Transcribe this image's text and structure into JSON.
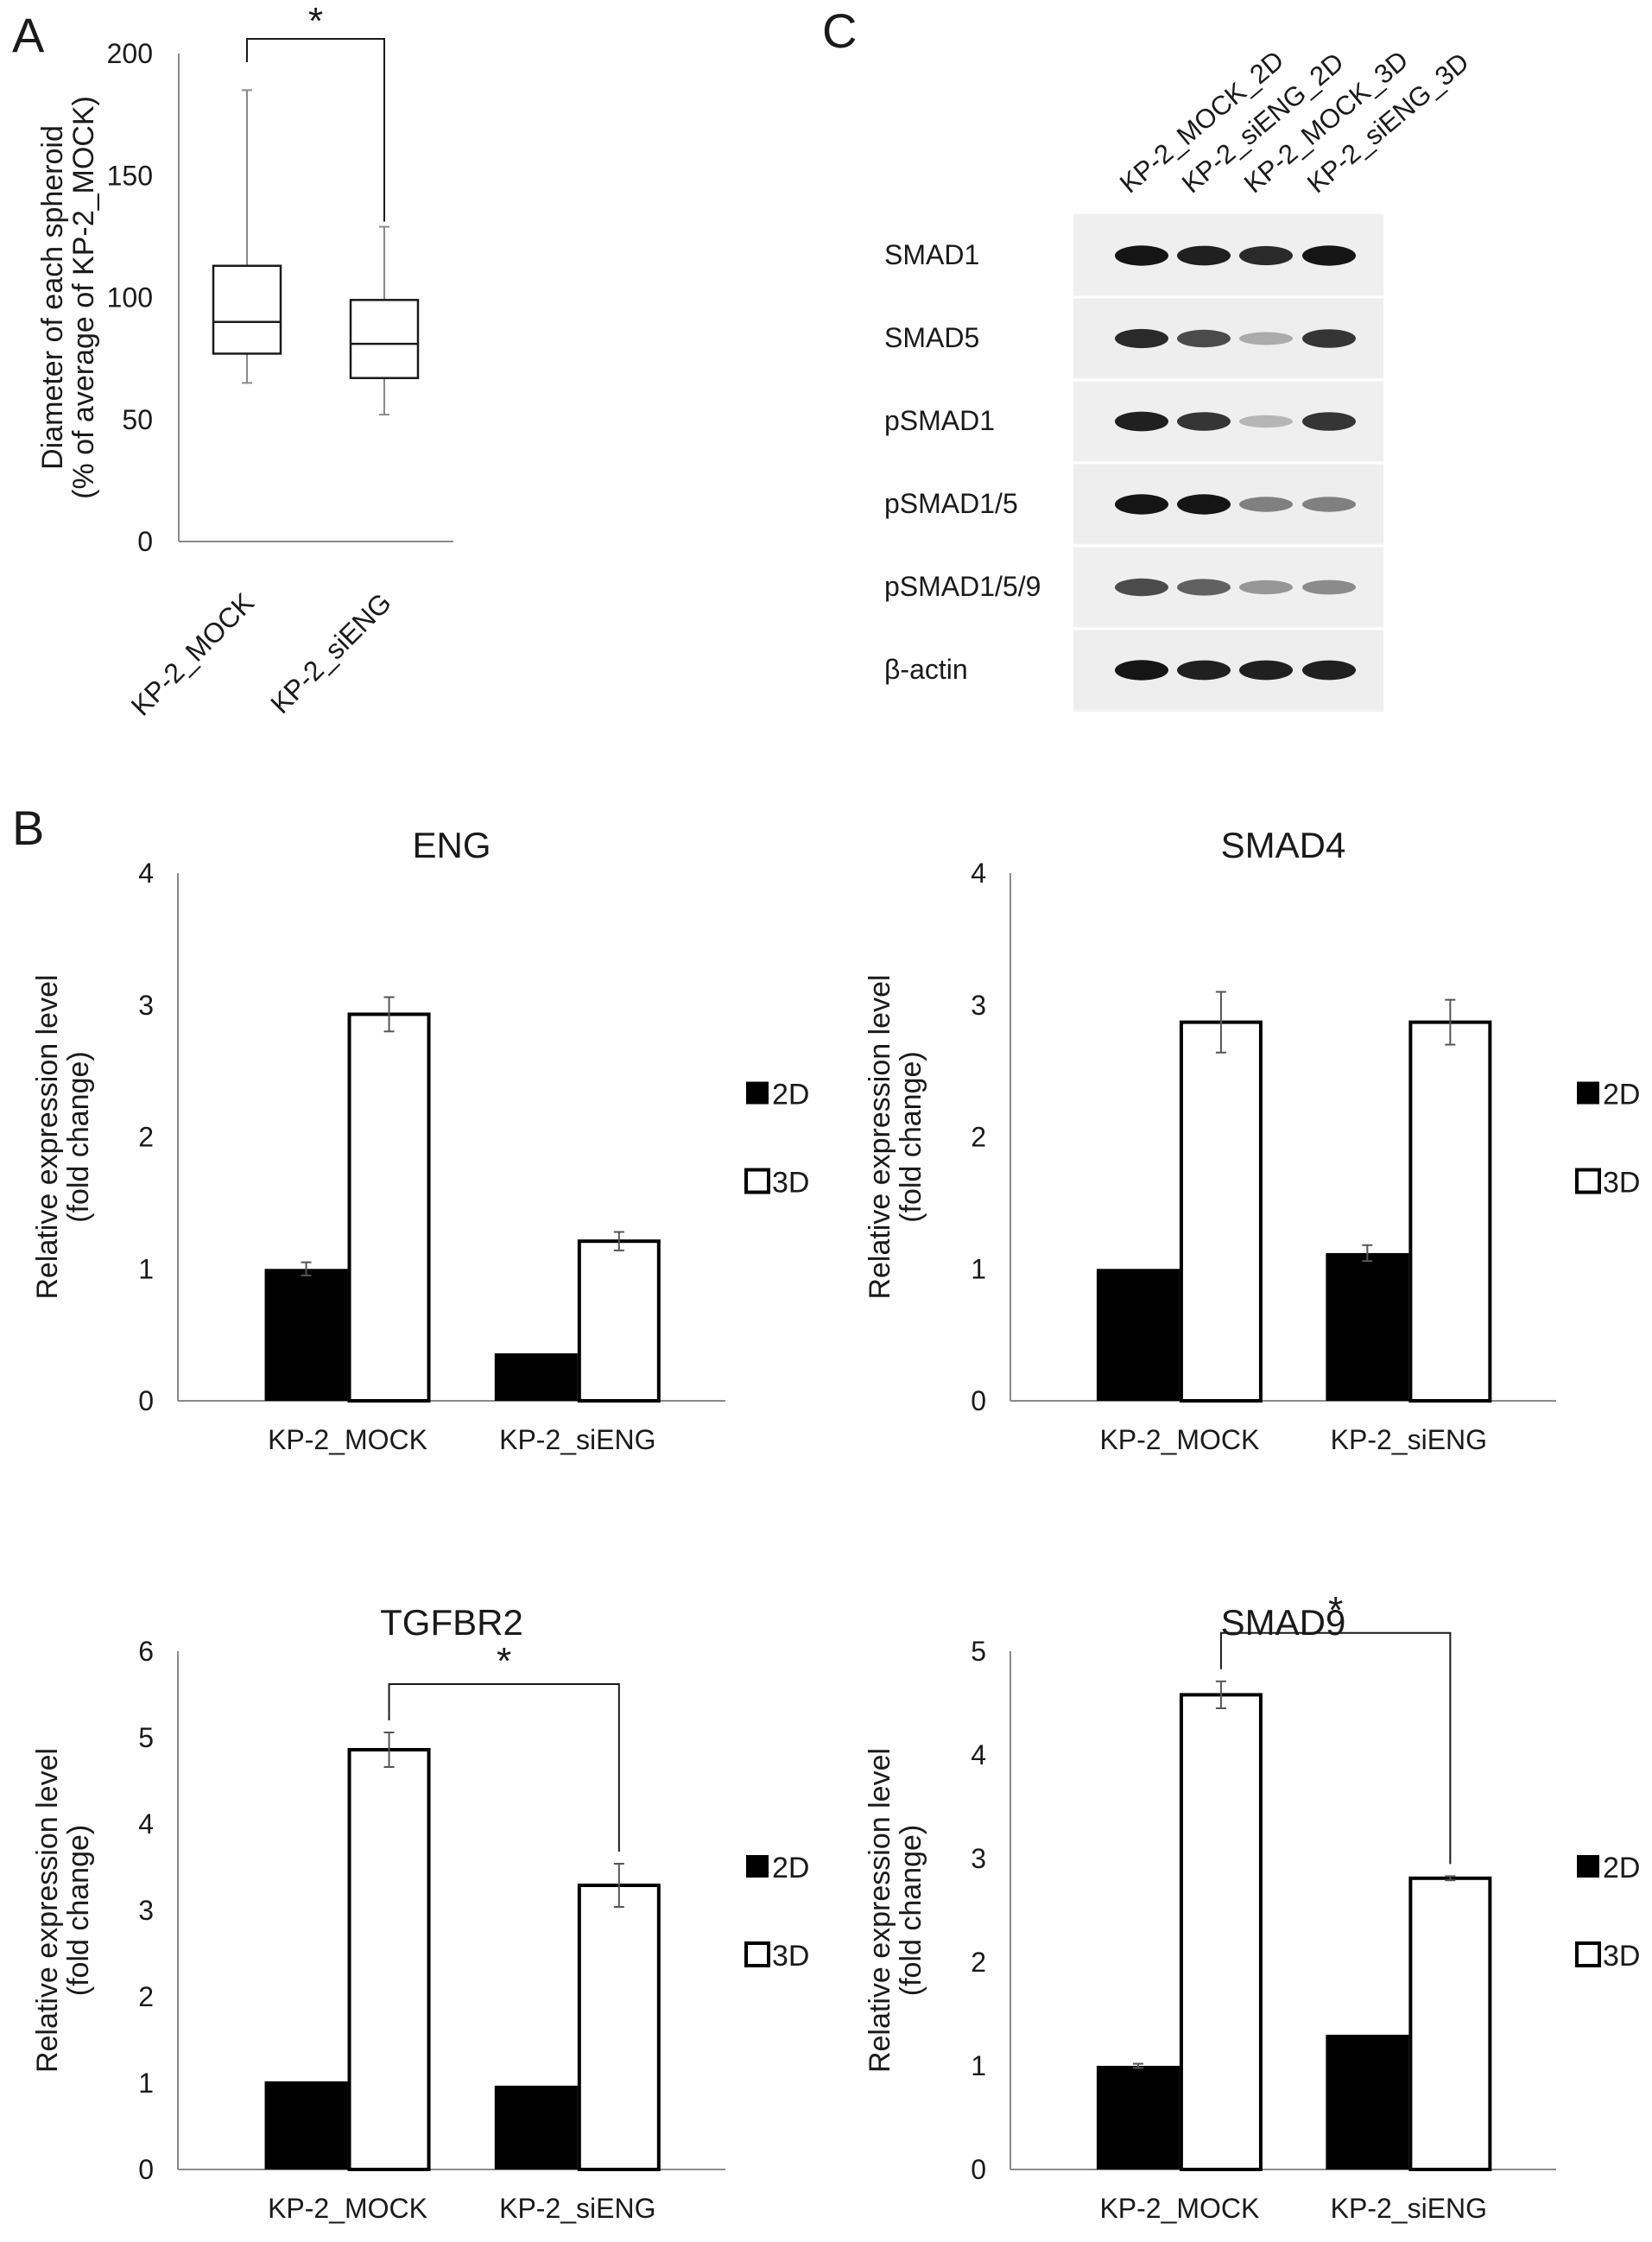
{
  "panels": {
    "A": "A",
    "B": "B",
    "C": "C"
  },
  "chart_data": [
    {
      "id": "A",
      "type": "boxplot",
      "categories": [
        "KP-2_MOCK",
        "KP-2_siENG"
      ],
      "ylabel_line1": "Diameter of each spheroid",
      "ylabel_line2": "(% of average of KP-2_MOCK)",
      "ylim": [
        0,
        200
      ],
      "yticks": [
        0,
        50,
        100,
        150,
        200
      ],
      "boxes": [
        {
          "category": "KP-2_MOCK",
          "min": 65,
          "q1": 77,
          "median": 90,
          "q3": 113,
          "max": 185
        },
        {
          "category": "KP-2_siENG",
          "min": 52,
          "q1": 67,
          "median": 81,
          "q3": 99,
          "max": 129
        }
      ],
      "significance": [
        {
          "from": 0,
          "to": 1,
          "label": "*"
        }
      ]
    },
    {
      "id": "ENG",
      "type": "bar",
      "title": "ENG",
      "categories": [
        "KP-2_MOCK",
        "KP-2_siENG"
      ],
      "series": [
        {
          "name": "2D",
          "values": [
            1.0,
            0.36
          ],
          "errors": [
            0.05,
            0.0
          ]
        },
        {
          "name": "3D",
          "values": [
            2.93,
            1.21
          ],
          "errors": [
            0.13,
            0.07
          ]
        }
      ],
      "ylabel_line1": "Relative expression level",
      "ylabel_line2": "(fold change)",
      "ylim": [
        0,
        4
      ],
      "yticks": [
        0,
        1,
        2,
        3,
        4
      ],
      "significance": []
    },
    {
      "id": "SMAD4",
      "type": "bar",
      "title": "SMAD4",
      "categories": [
        "KP-2_MOCK",
        "KP-2_siENG"
      ],
      "series": [
        {
          "name": "2D",
          "values": [
            1.0,
            1.12
          ],
          "errors": [
            0.0,
            0.06
          ]
        },
        {
          "name": "3D",
          "values": [
            2.87,
            2.87
          ],
          "errors": [
            0.23,
            0.17
          ]
        }
      ],
      "ylabel_line1": "Relative expression level",
      "ylabel_line2": "(fold change)",
      "ylim": [
        0,
        4
      ],
      "yticks": [
        0,
        1,
        2,
        3,
        4
      ],
      "significance": []
    },
    {
      "id": "TGFBR2",
      "type": "bar",
      "title": "TGFBR2",
      "categories": [
        "KP-2_MOCK",
        "KP-2_siENG"
      ],
      "series": [
        {
          "name": "2D",
          "values": [
            1.02,
            0.97
          ],
          "errors": [
            0.0,
            0.0
          ]
        },
        {
          "name": "3D",
          "values": [
            4.86,
            3.29
          ],
          "errors": [
            0.2,
            0.25
          ]
        }
      ],
      "ylabel_line1": "Relative expression level",
      "ylabel_line2": "(fold change)",
      "ylim": [
        0,
        6
      ],
      "yticks": [
        0,
        1,
        2,
        3,
        4,
        5,
        6
      ],
      "significance": [
        {
          "from": 0,
          "to": 1,
          "label": "*"
        }
      ]
    },
    {
      "id": "SMAD9",
      "type": "bar",
      "title": "SMAD9",
      "categories": [
        "KP-2_MOCK",
        "KP-2_siENG"
      ],
      "series": [
        {
          "name": "2D",
          "values": [
            1.0,
            1.3
          ],
          "errors": [
            0.02,
            0.0
          ]
        },
        {
          "name": "3D",
          "values": [
            4.58,
            2.81
          ],
          "errors": [
            0.13,
            0.02
          ]
        }
      ],
      "ylabel_line1": "Relative expression level",
      "ylabel_line2": "(fold change)",
      "ylim": [
        0,
        5
      ],
      "yticks": [
        0,
        1,
        2,
        3,
        4,
        5
      ],
      "significance": [
        {
          "from": 0,
          "to": 1,
          "label": "*"
        }
      ]
    }
  ],
  "western_blot": {
    "lanes": [
      "KP-2_MOCK_2D",
      "KP-2_siENG_2D",
      "KP-2_MOCK_3D",
      "KP-2_siENG_3D"
    ],
    "rows": [
      {
        "label": "SMAD1",
        "intensity": [
          0.95,
          0.9,
          0.85,
          0.95
        ]
      },
      {
        "label": "SMAD5",
        "intensity": [
          0.85,
          0.7,
          0.25,
          0.8
        ]
      },
      {
        "label": "pSMAD1",
        "intensity": [
          0.9,
          0.8,
          0.2,
          0.8
        ]
      },
      {
        "label": "pSMAD1/5",
        "intensity": [
          0.95,
          0.95,
          0.45,
          0.45
        ]
      },
      {
        "label": "pSMAD1/5/9",
        "intensity": [
          0.7,
          0.6,
          0.35,
          0.4
        ]
      },
      {
        "label": "β-actin",
        "intensity": [
          0.95,
          0.9,
          0.9,
          0.9
        ]
      }
    ]
  }
}
